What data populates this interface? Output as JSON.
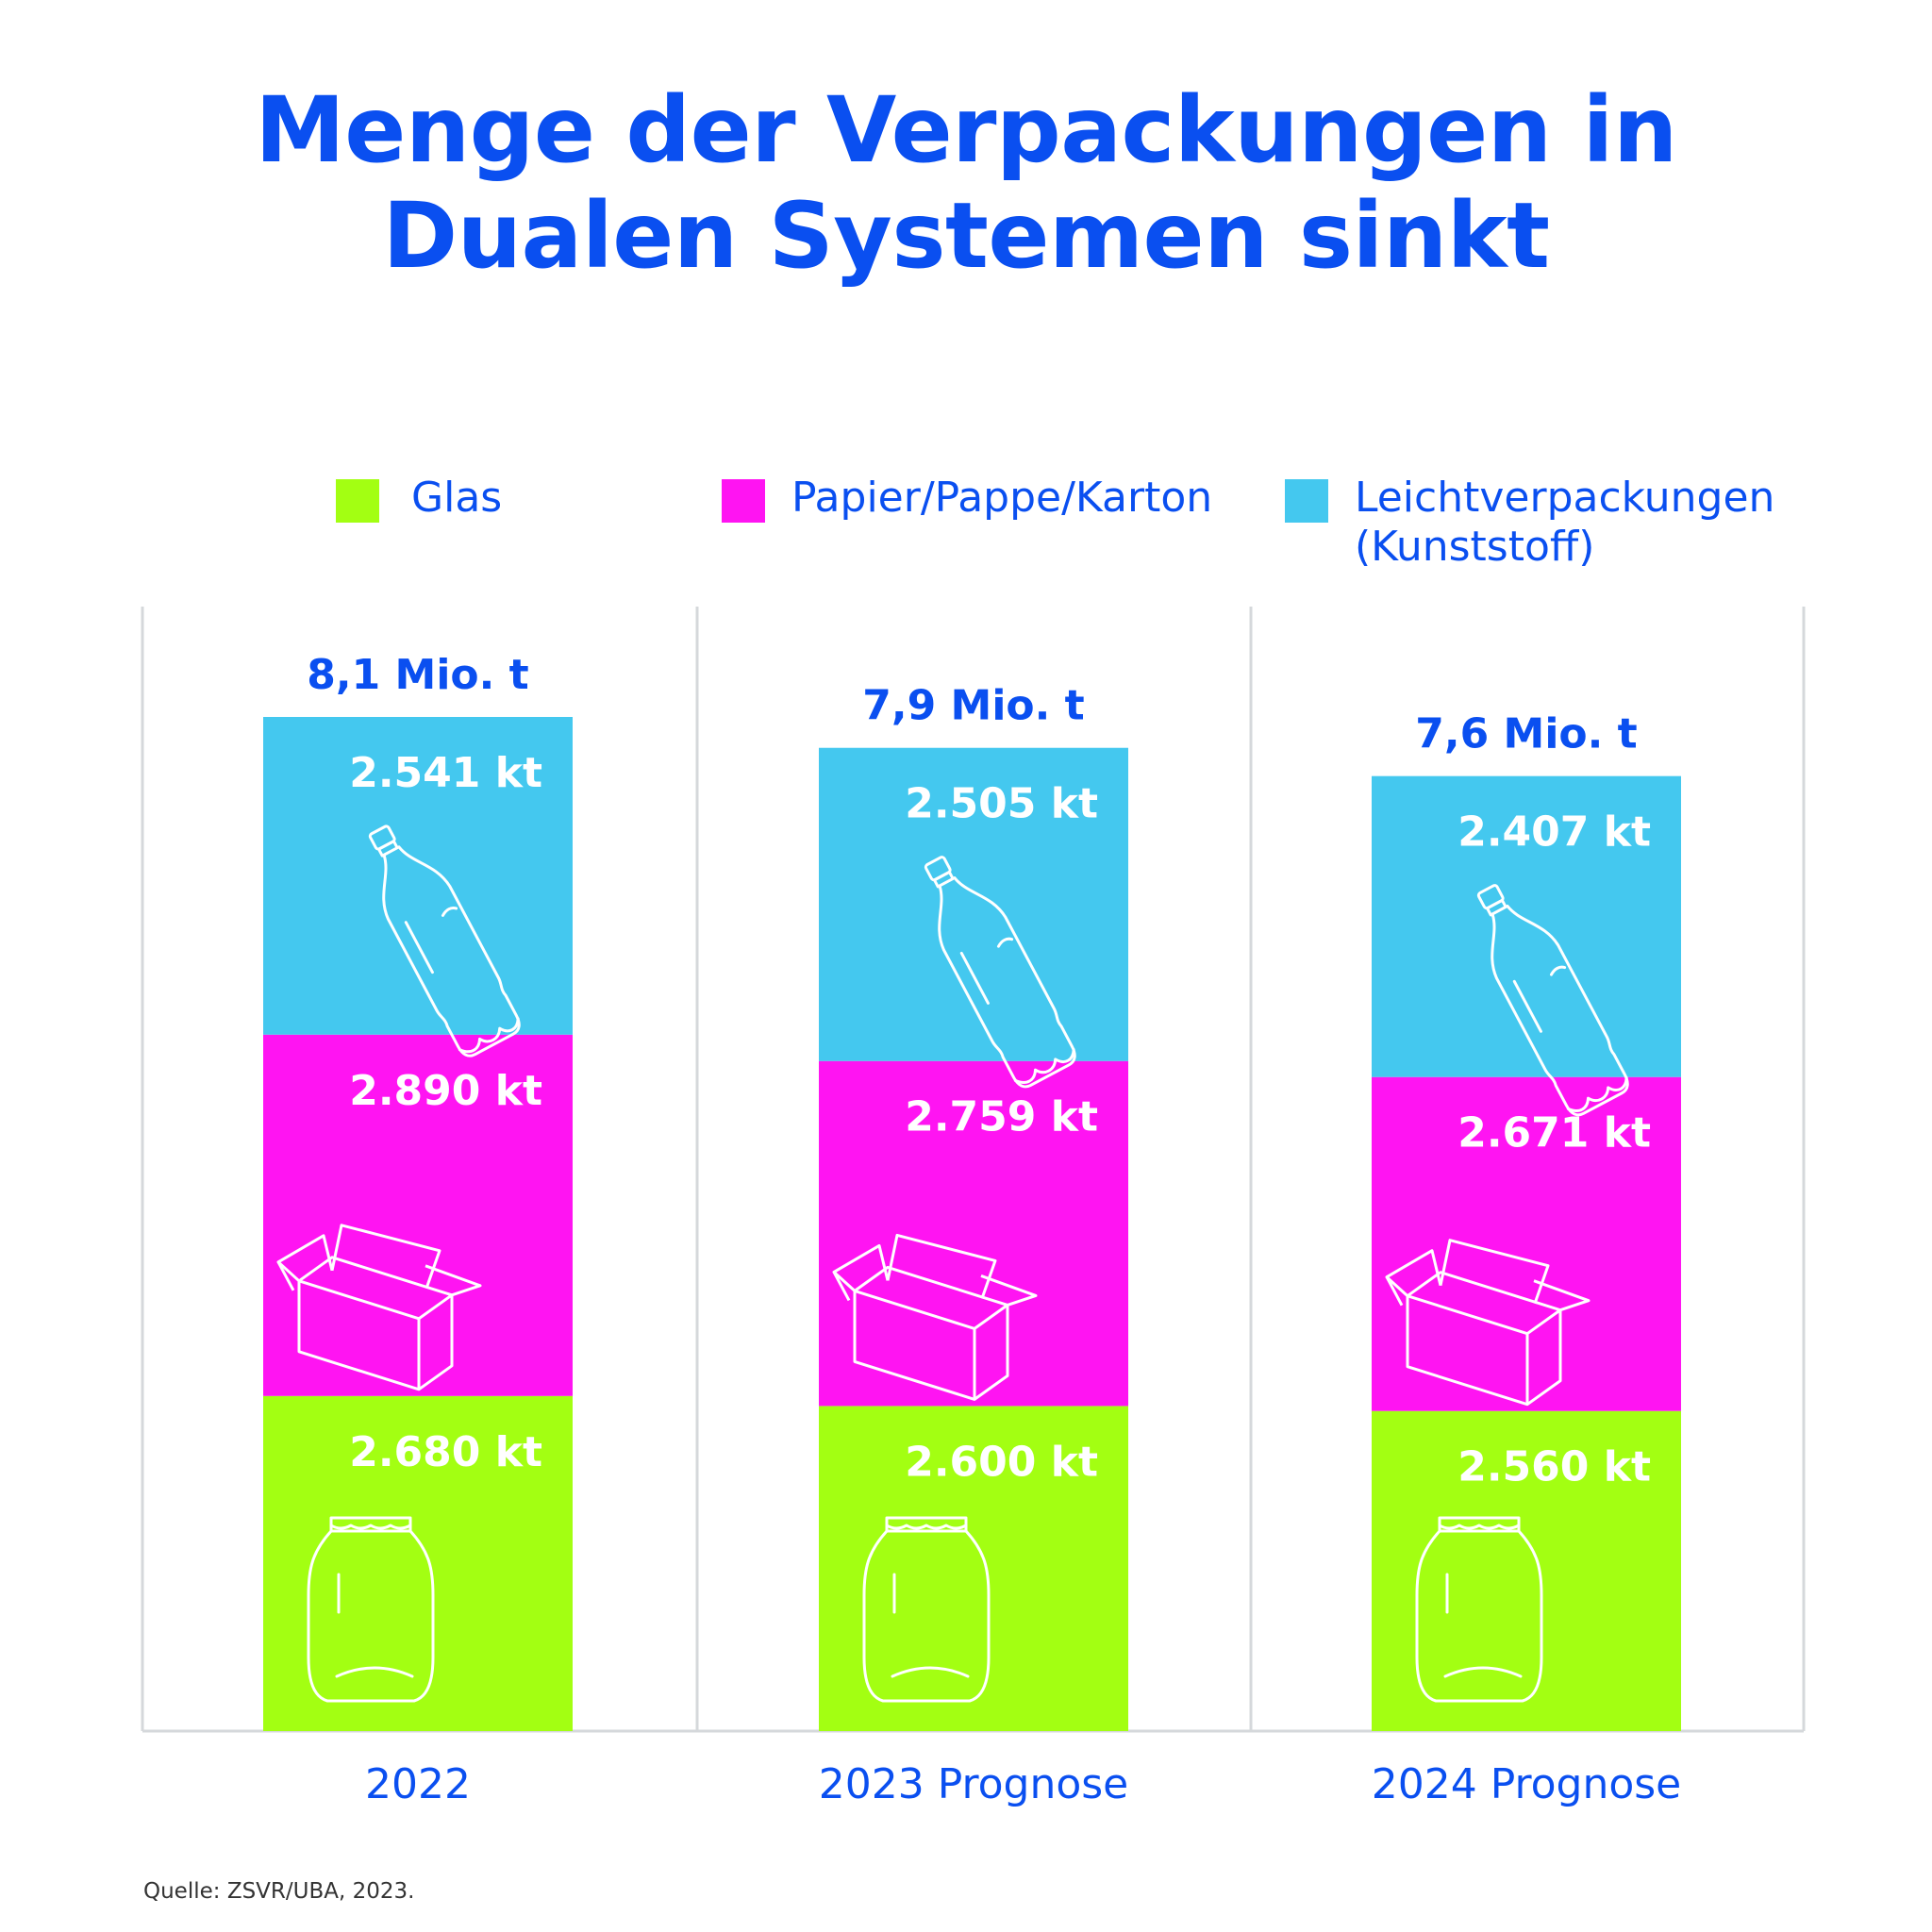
{
  "title_lines": [
    "Menge der Verpackungen in",
    "Dualen Systemen sinkt"
  ],
  "legend": [
    {
      "label": "Glas",
      "color": "#a3ff12"
    },
    {
      "label": "Papier/Pappe/Karton",
      "color": "#ff14f2"
    },
    {
      "label": "Leichtverpackungen\n(Kunststoff)",
      "color": "#44c8ef"
    }
  ],
  "source": "Quelle: ZSVR/UBA, 2023.",
  "colors": {
    "accent": "#0a4ff0",
    "grid": "#d5d8db"
  },
  "chart_data": {
    "type": "bar",
    "stacked": true,
    "title": "Menge der Verpackungen in Dualen Systemen sinkt",
    "categories": [
      "2022",
      "2023 Prognose",
      "2024 Prognose"
    ],
    "totals": [
      "8,1 Mio. t",
      "7,9 Mio. t",
      "7,6 Mio. t"
    ],
    "series": [
      {
        "name": "Glas",
        "color": "#a3ff12",
        "icon": "glass-jar-icon",
        "values": [
          2680,
          2600,
          2560
        ],
        "labels": [
          "2.680 kt",
          "2.600 kt",
          "2.560 kt"
        ]
      },
      {
        "name": "Papier/Pappe/Karton",
        "color": "#ff14f2",
        "icon": "cardboard-box-icon",
        "values": [
          2890,
          2759,
          2671
        ],
        "labels": [
          "2.890 kt",
          "2.759 kt",
          "2.671 kt"
        ]
      },
      {
        "name": "Leichtverpackungen (Kunststoff)",
        "color": "#44c8ef",
        "icon": "plastic-bottle-icon",
        "values": [
          2541,
          2505,
          2407
        ],
        "labels": [
          "2.541 kt",
          "2.505 kt",
          "2.407 kt"
        ]
      }
    ],
    "grid": false,
    "legend_position": "top"
  }
}
